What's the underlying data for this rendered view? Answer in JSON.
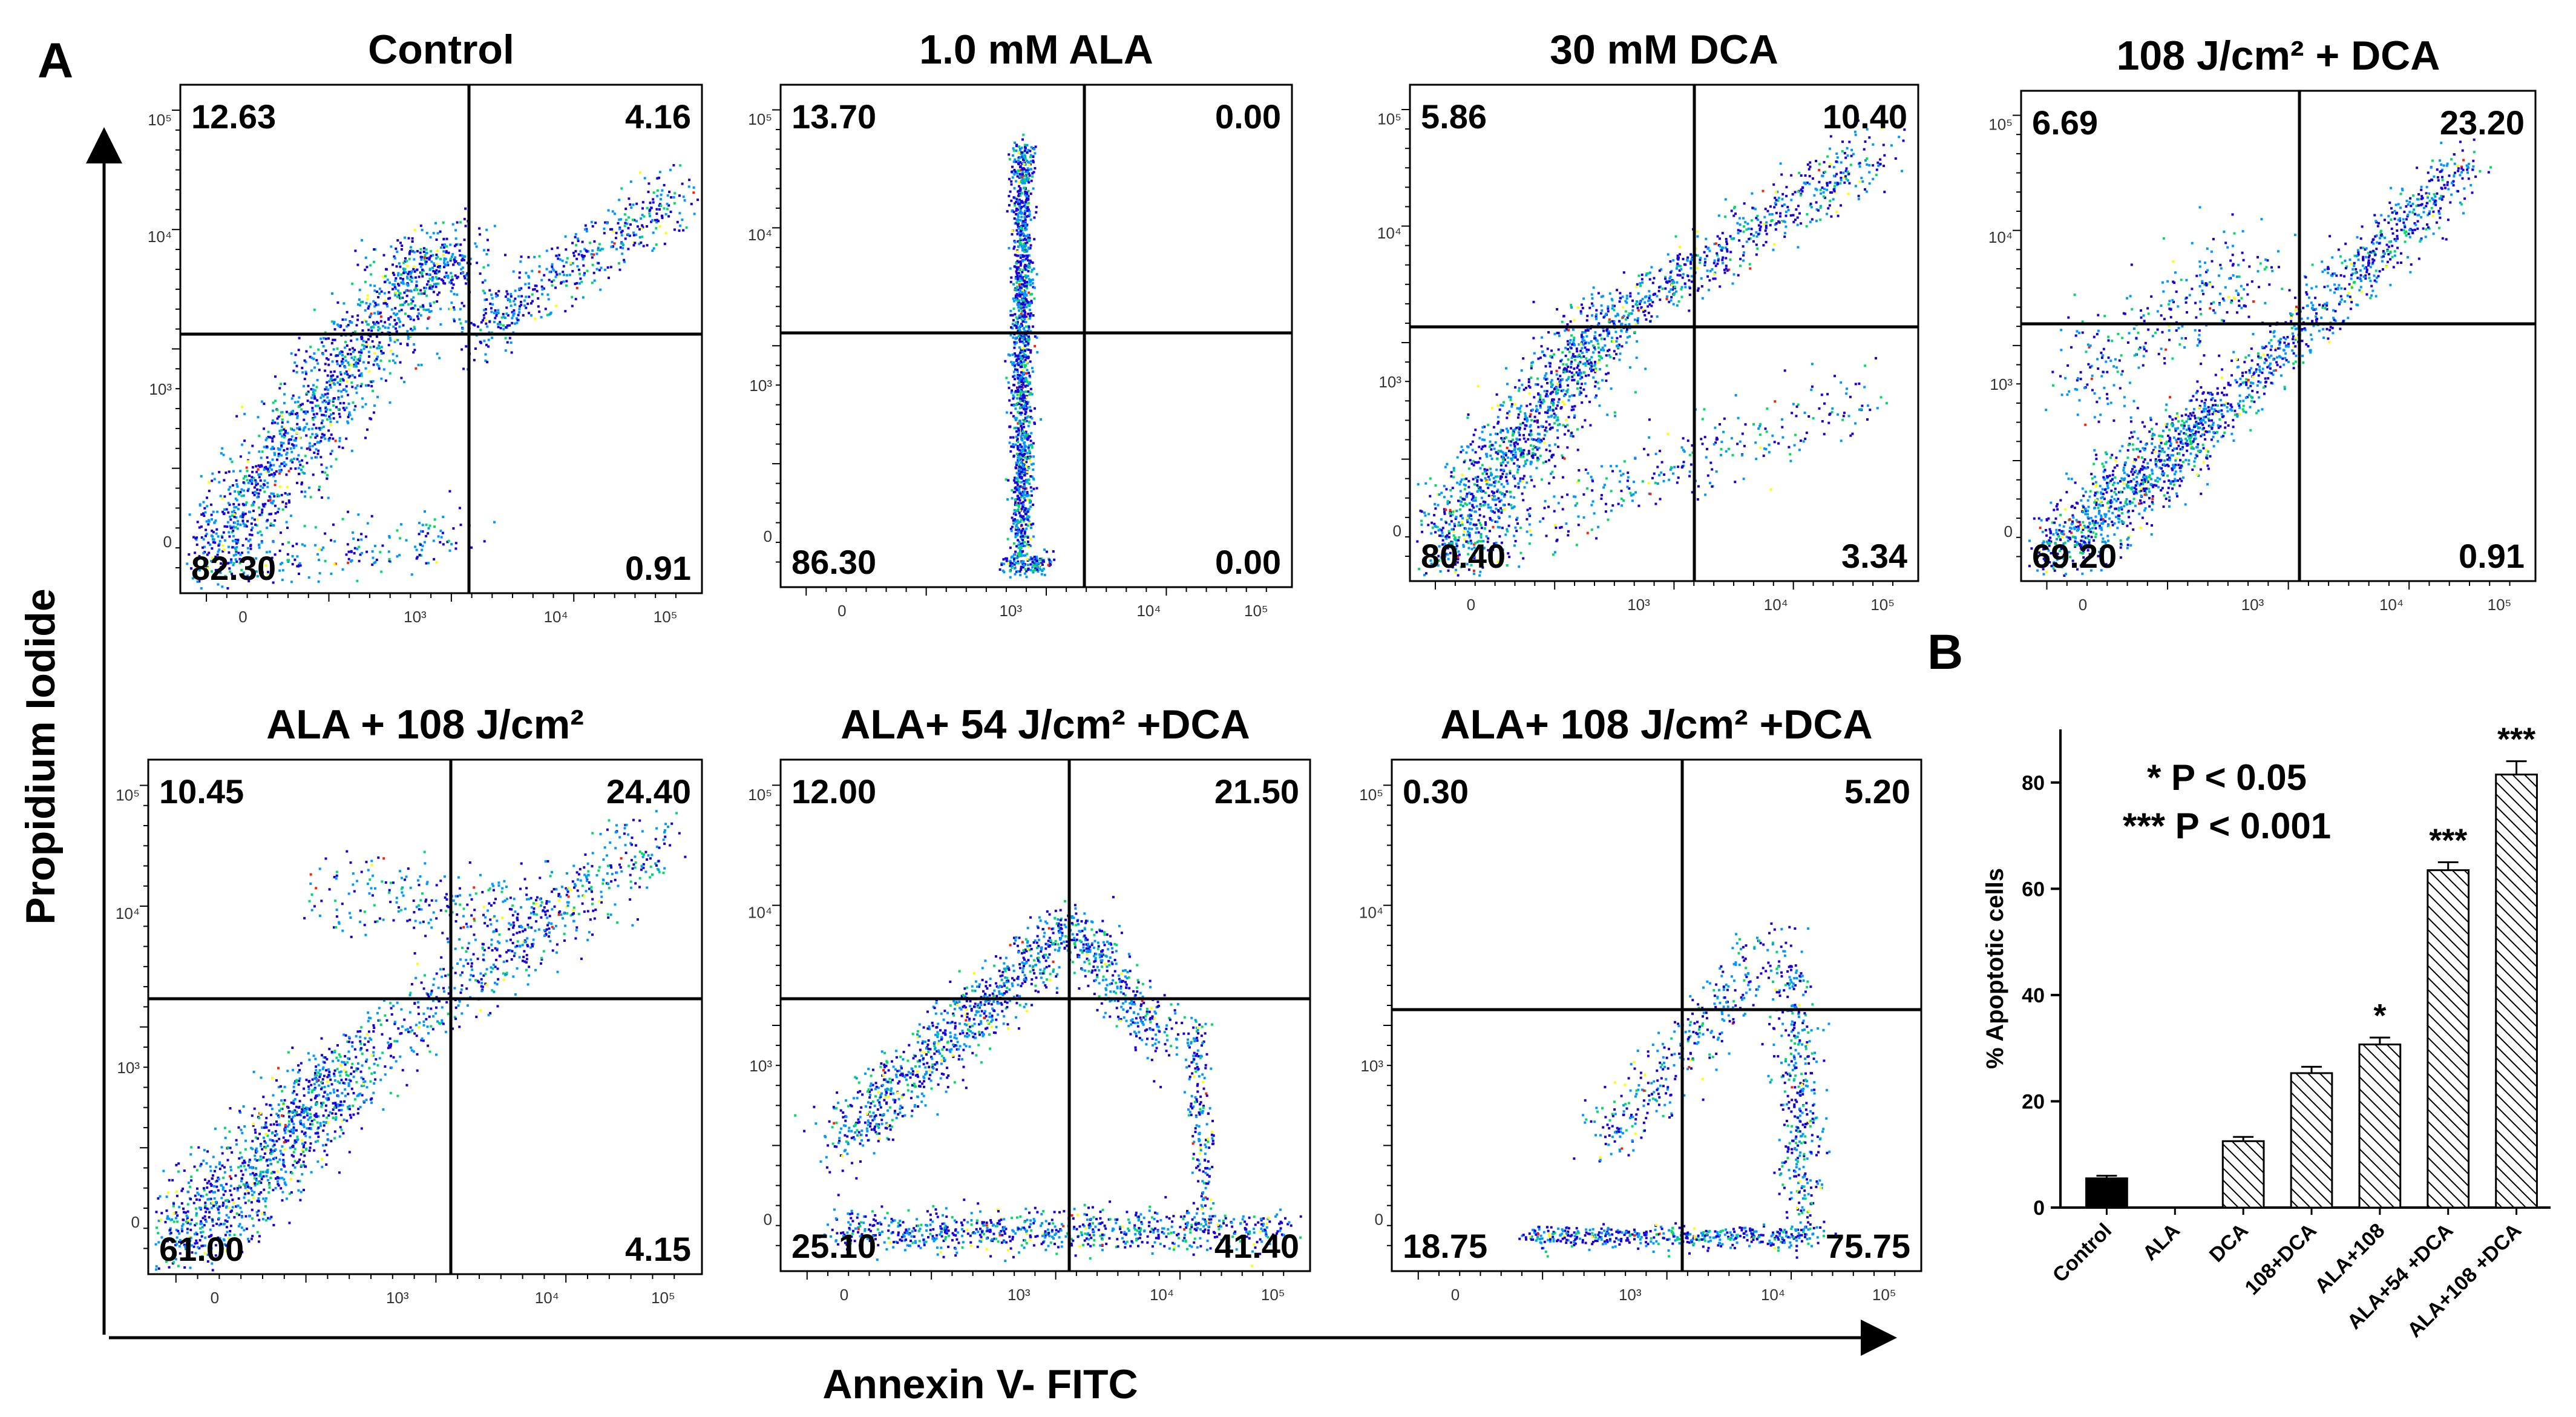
{
  "panel_labels": {
    "a": "A",
    "b": "B"
  },
  "y_axis_label": "Propidium Iodide",
  "x_axis_label": "Annexin V- FITC",
  "chart_data": [
    {
      "type": "scatter",
      "subtype": "flow-cytometry-quadrant-density",
      "x_axis": "Annexin V- FITC",
      "y_axis": "Propidium Iodide",
      "scale": "logicle",
      "x_tick_labels": [
        "0",
        "10³",
        "10⁴",
        "10⁵"
      ],
      "y_tick_labels": [
        "0",
        "10³",
        "10⁴",
        "10⁵"
      ],
      "color_scale": [
        "#1a00d9",
        "#0099ff",
        "#00dd66",
        "#ffff00",
        "#ff2200"
      ],
      "panels": [
        {
          "title": "Control",
          "quadrants": {
            "upper_left": "12.63",
            "upper_right": "4.16",
            "lower_left": "82.30",
            "lower_right": "0.91"
          }
        },
        {
          "title": "1.0 mM ALA",
          "quadrants": {
            "upper_left": "13.70",
            "upper_right": "0.00",
            "lower_left": "86.30",
            "lower_right": "0.00"
          }
        },
        {
          "title": "30 mM DCA",
          "quadrants": {
            "upper_left": "5.86",
            "upper_right": "10.40",
            "lower_left": "80.40",
            "lower_right": "3.34"
          }
        },
        {
          "title": "108 J/cm² + DCA",
          "quadrants": {
            "upper_left": "6.69",
            "upper_right": "23.20",
            "lower_left": "69.20",
            "lower_right": "0.91"
          }
        },
        {
          "title": "ALA + 108 J/cm²",
          "quadrants": {
            "upper_left": "10.45",
            "upper_right": "24.40",
            "lower_left": "61.00",
            "lower_right": "4.15"
          }
        },
        {
          "title": "ALA+ 54 J/cm² +DCA",
          "quadrants": {
            "upper_left": "12.00",
            "upper_right": "21.50",
            "lower_left": "25.10",
            "lower_right": "41.40"
          }
        },
        {
          "title": "ALA+ 108 J/cm² +DCA",
          "quadrants": {
            "upper_left": "0.30",
            "upper_right": "5.20",
            "lower_left": "18.75",
            "lower_right": "75.75"
          }
        }
      ]
    },
    {
      "type": "bar",
      "categories": [
        "Control",
        "ALA",
        "DCA",
        "108+DCA",
        "ALA+108",
        "ALA+54 +DCA",
        "ALA+108 +DCA"
      ],
      "values": [
        5.5,
        0,
        12.5,
        25.3,
        30.7,
        63.5,
        81.5
      ],
      "errors": [
        0.5,
        0,
        0.8,
        1.2,
        1.3,
        1.5,
        2.5
      ],
      "significance": [
        "",
        "",
        "",
        "",
        "*",
        "***",
        "***"
      ],
      "fill": [
        "solid",
        "none",
        "hatched",
        "hatched",
        "hatched",
        "hatched",
        "hatched"
      ],
      "ylabel": "% Apoptotic cells",
      "ylim": [
        0,
        90
      ],
      "yticks": [
        0,
        20,
        40,
        60,
        80
      ],
      "legend_text": [
        "* P < 0.05",
        "*** P < 0.001"
      ],
      "colors": {
        "bar": "#000000",
        "background": "#ffffff"
      }
    }
  ]
}
